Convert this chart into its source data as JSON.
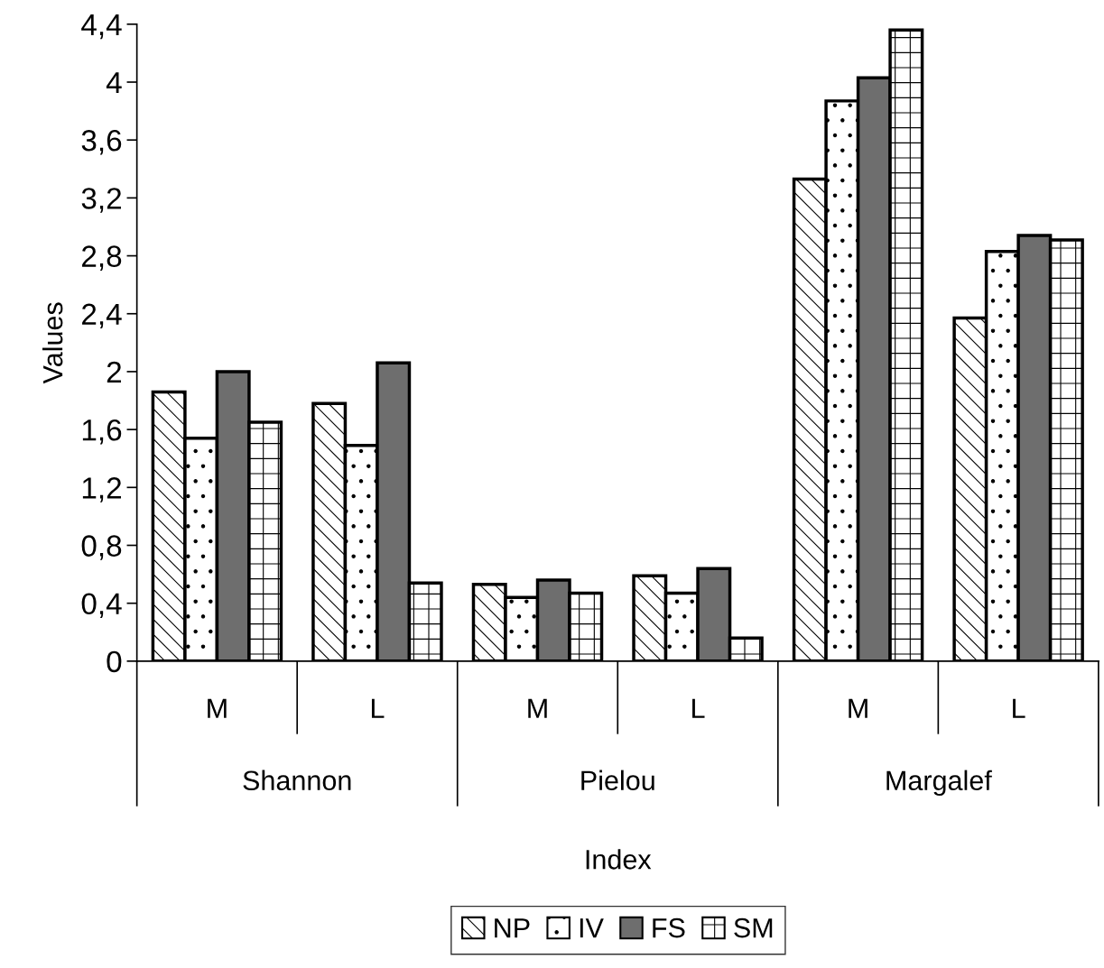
{
  "chart_data": {
    "type": "bar",
    "xlabel": "Index",
    "ylabel": "Values",
    "categories": [
      "M",
      "L",
      "M",
      "L",
      "M",
      "L"
    ],
    "annotations": [
      "Shannon",
      "Pielou",
      "Margalef"
    ],
    "series": [
      {
        "name": "NP",
        "color": "#000000",
        "values": [
          1.86,
          1.78,
          0.53,
          0.59,
          3.33,
          2.37
        ]
      },
      {
        "name": "IV",
        "color": "#000000",
        "values": [
          1.54,
          1.49,
          0.44,
          0.47,
          3.87,
          2.83
        ]
      },
      {
        "name": "FS",
        "color": "#6e6e6e",
        "values": [
          2.0,
          2.06,
          0.56,
          0.64,
          4.03,
          2.94
        ]
      },
      {
        "name": "SM",
        "color": "#000000",
        "values": [
          1.65,
          0.54,
          0.47,
          0.16,
          4.36,
          2.91
        ]
      }
    ],
    "ylim": [
      0,
      4.4
    ],
    "yticks": [
      0,
      {
        "value": 0.4,
        "label": "0,4"
      },
      {
        "value": 0.8,
        "label": "0,8"
      },
      {
        "value": 1.2,
        "label": "1,2"
      },
      {
        "value": 1.6,
        "label": "1,6"
      },
      2,
      {
        "value": 2.4,
        "label": "2,4"
      },
      {
        "value": 2.8,
        "label": "2,8"
      },
      {
        "value": 3.2,
        "label": "3,2"
      },
      {
        "value": 3.6,
        "label": "3,6"
      },
      4,
      {
        "value": 4.4,
        "label": "4,4"
      }
    ],
    "grid": false,
    "legend": "bottom"
  }
}
